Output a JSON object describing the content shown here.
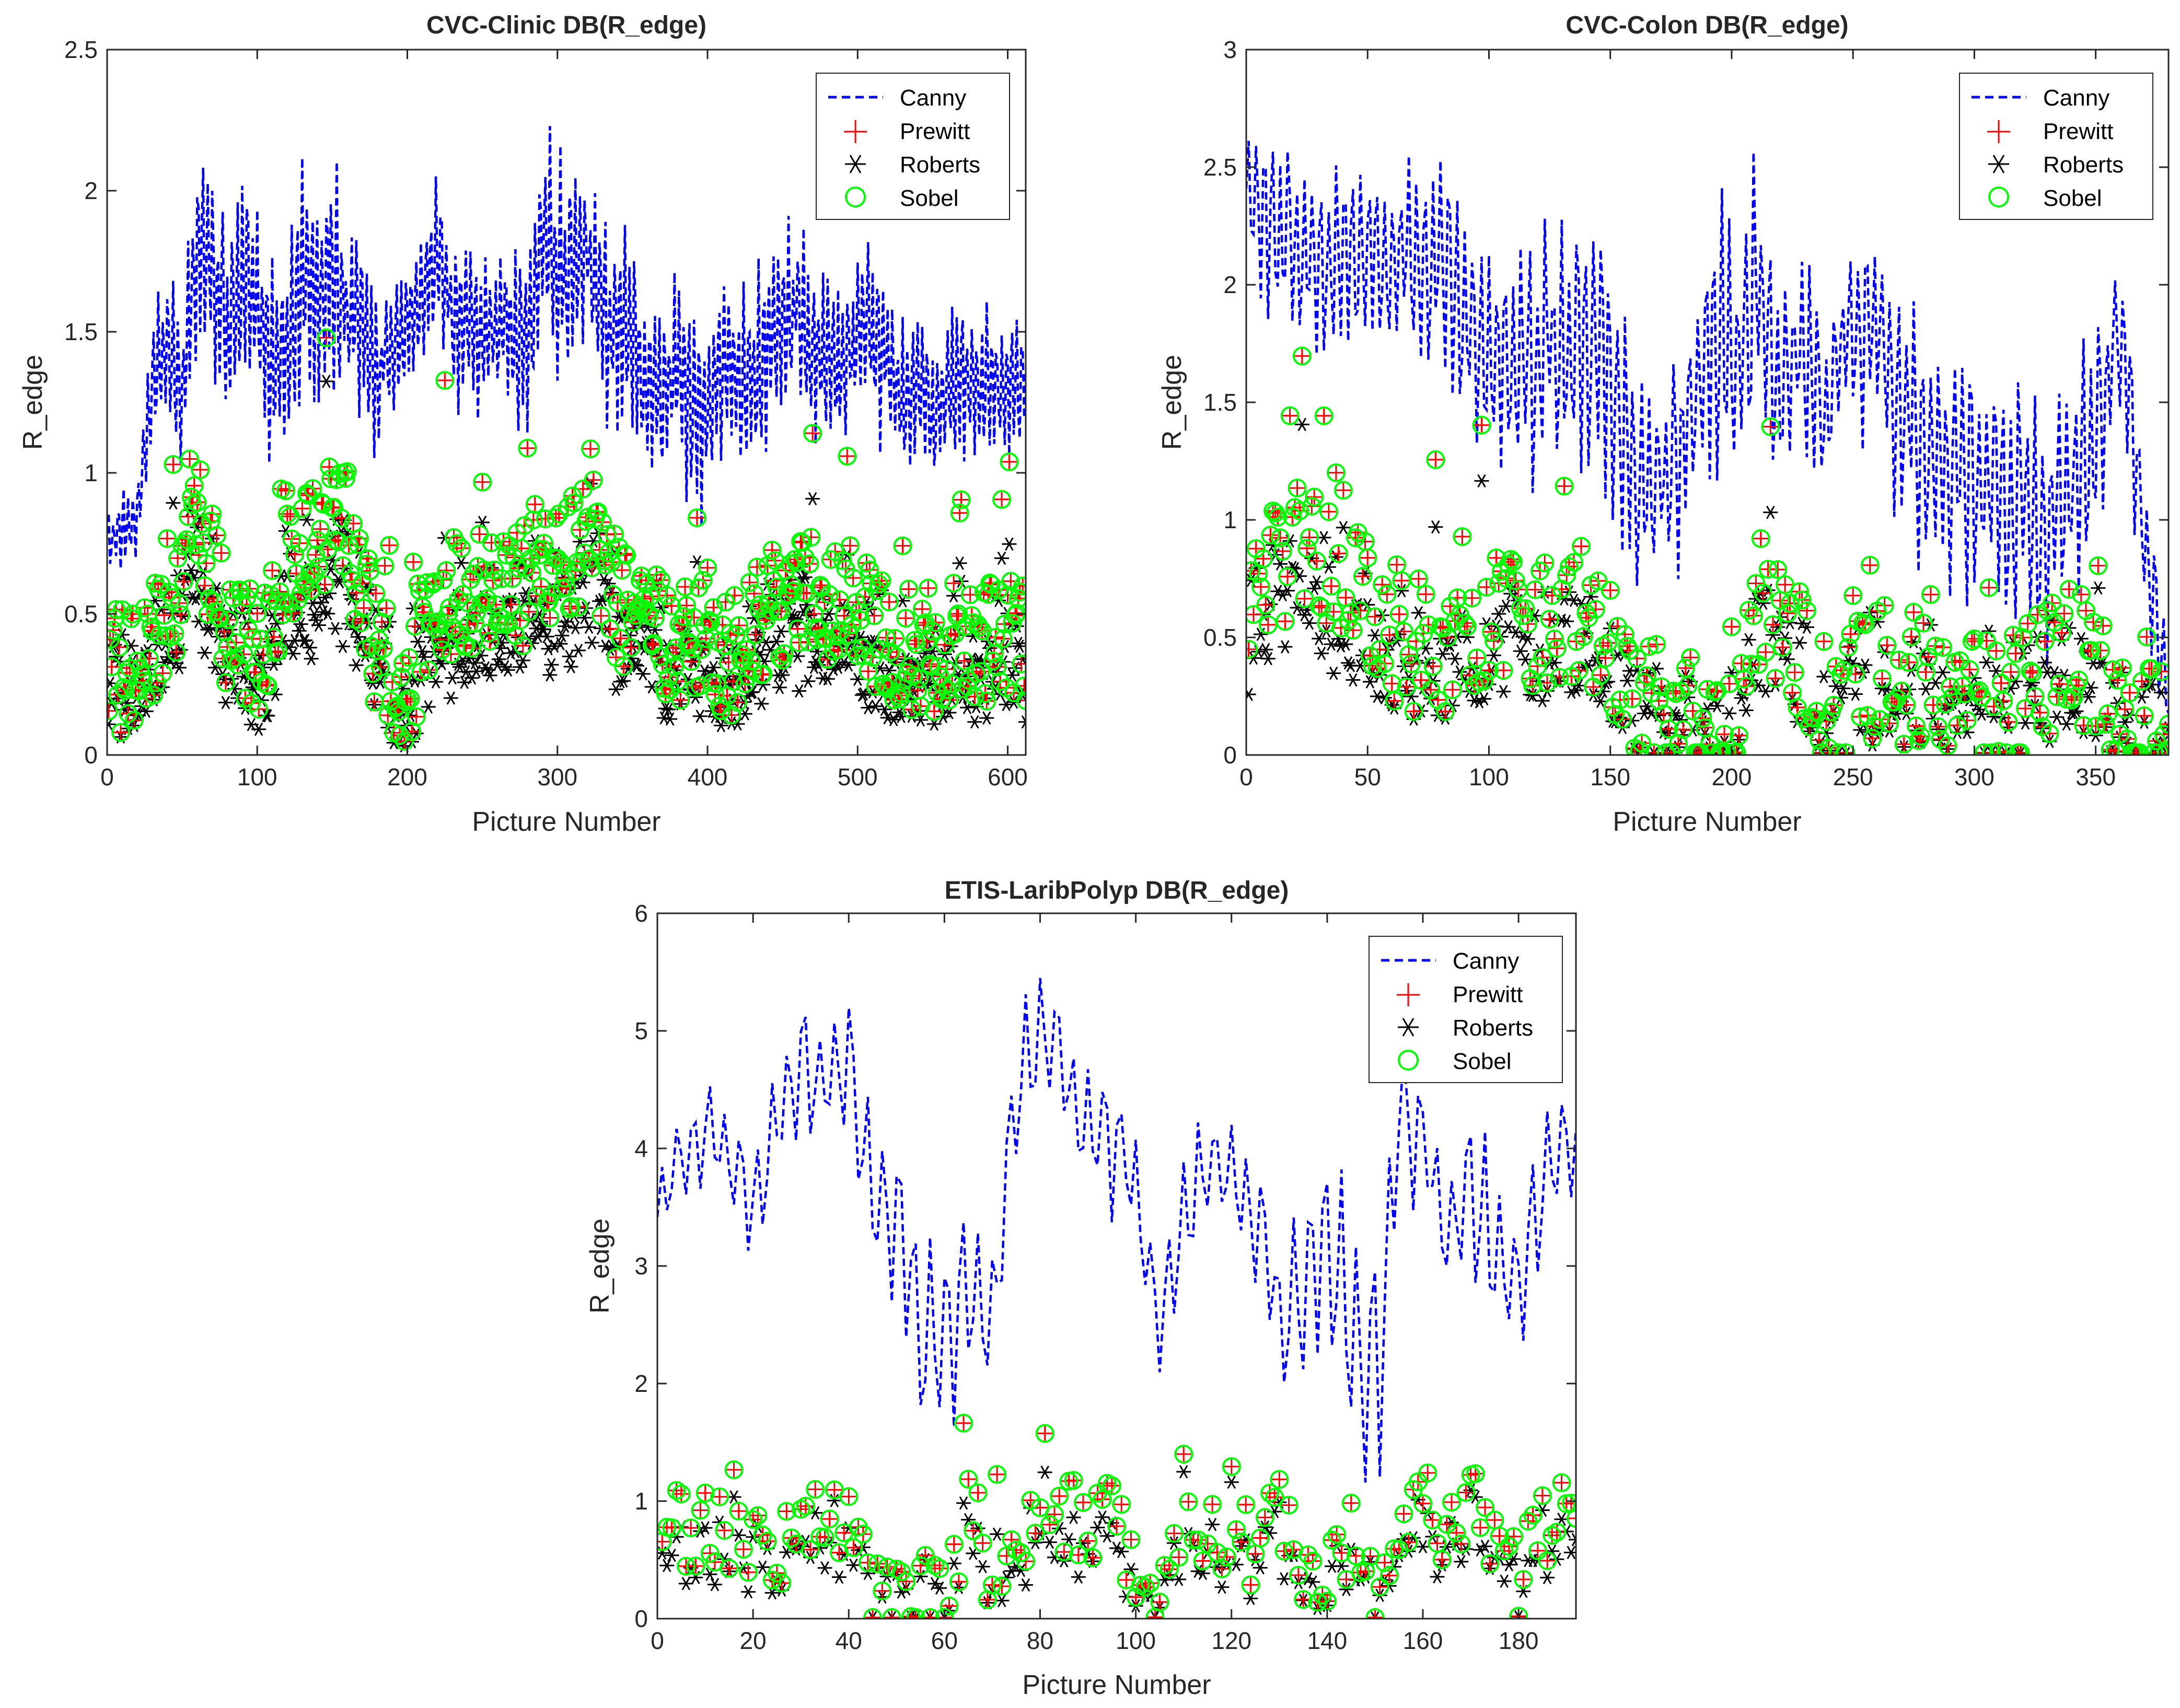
{
  "colors": {
    "canny": "#0000ff",
    "prewitt": "#ff0000",
    "roberts": "#000000",
    "sobel": "#00ff00",
    "axis": "#262626"
  },
  "chart_data": [
    {
      "type": "line",
      "title": "CVC-Clinic DB(R_edge)",
      "xlabel": "Picture Number",
      "ylabel": "R_edge",
      "xlim": [
        0,
        612
      ],
      "ylim": [
        0,
        2.5
      ],
      "xticks": [
        0,
        100,
        200,
        300,
        400,
        500,
        600
      ],
      "yticks": [
        0,
        0.5,
        1,
        1.5,
        2,
        2.5
      ],
      "ytick_labels": [
        "0",
        "0.5",
        "1",
        "1.5",
        "2",
        "2.5"
      ],
      "legend": [
        "Canny",
        "Prewitt",
        "Roberts",
        "Sobel"
      ],
      "legend_position": "top-right",
      "canny_profile": [
        [
          0,
          0.75
        ],
        [
          10,
          0.8
        ],
        [
          20,
          0.85
        ],
        [
          30,
          1.3
        ],
        [
          40,
          1.45
        ],
        [
          50,
          1.3
        ],
        [
          60,
          1.85
        ],
        [
          70,
          1.75
        ],
        [
          80,
          1.5
        ],
        [
          90,
          1.7
        ],
        [
          100,
          1.55
        ],
        [
          110,
          1.35
        ],
        [
          120,
          1.4
        ],
        [
          130,
          1.75
        ],
        [
          140,
          1.6
        ],
        [
          150,
          1.7
        ],
        [
          160,
          1.55
        ],
        [
          170,
          1.5
        ],
        [
          180,
          1.35
        ],
        [
          190,
          1.45
        ],
        [
          200,
          1.5
        ],
        [
          210,
          1.6
        ],
        [
          220,
          1.8
        ],
        [
          230,
          1.55
        ],
        [
          240,
          1.5
        ],
        [
          250,
          1.45
        ],
        [
          260,
          1.55
        ],
        [
          270,
          1.5
        ],
        [
          280,
          1.45
        ],
        [
          290,
          1.8
        ],
        [
          300,
          1.75
        ],
        [
          310,
          1.7
        ],
        [
          320,
          1.8
        ],
        [
          330,
          1.6
        ],
        [
          340,
          1.5
        ],
        [
          350,
          1.45
        ],
        [
          360,
          1.3
        ],
        [
          370,
          1.3
        ],
        [
          380,
          1.35
        ],
        [
          390,
          1.25
        ],
        [
          400,
          1.25
        ],
        [
          410,
          1.4
        ],
        [
          420,
          1.35
        ],
        [
          430,
          1.35
        ],
        [
          440,
          1.45
        ],
        [
          450,
          1.55
        ],
        [
          460,
          1.6
        ],
        [
          470,
          1.45
        ],
        [
          480,
          1.4
        ],
        [
          490,
          1.35
        ],
        [
          500,
          1.5
        ],
        [
          510,
          1.45
        ],
        [
          520,
          1.4
        ],
        [
          530,
          1.25
        ],
        [
          540,
          1.3
        ],
        [
          550,
          1.2
        ],
        [
          560,
          1.3
        ],
        [
          570,
          1.35
        ],
        [
          580,
          1.3
        ],
        [
          590,
          1.35
        ],
        [
          600,
          1.3
        ],
        [
          612,
          1.3
        ]
      ],
      "canny_amplitude": [
        [
          0,
          0.12
        ],
        [
          20,
          0.15
        ],
        [
          40,
          0.3
        ],
        [
          60,
          0.4
        ],
        [
          100,
          0.35
        ],
        [
          140,
          0.45
        ],
        [
          200,
          0.25
        ],
        [
          260,
          0.3
        ],
        [
          300,
          0.4
        ],
        [
          360,
          0.35
        ],
        [
          400,
          0.35
        ],
        [
          460,
          0.3
        ],
        [
          520,
          0.3
        ],
        [
          560,
          0.3
        ],
        [
          612,
          0.25
        ]
      ],
      "points_profile": [
        [
          0,
          0.3
        ],
        [
          20,
          0.3
        ],
        [
          40,
          0.45
        ],
        [
          60,
          0.85
        ],
        [
          80,
          0.45
        ],
        [
          100,
          0.35
        ],
        [
          120,
          0.65
        ],
        [
          140,
          0.8
        ],
        [
          160,
          0.8
        ],
        [
          180,
          0.35
        ],
        [
          200,
          0.25
        ],
        [
          220,
          0.6
        ],
        [
          240,
          0.55
        ],
        [
          260,
          0.6
        ],
        [
          280,
          0.6
        ],
        [
          300,
          0.7
        ],
        [
          320,
          0.75
        ],
        [
          340,
          0.55
        ],
        [
          360,
          0.45
        ],
        [
          380,
          0.4
        ],
        [
          400,
          0.45
        ],
        [
          410,
          0.25
        ],
        [
          420,
          0.4
        ],
        [
          440,
          0.5
        ],
        [
          460,
          0.6
        ],
        [
          480,
          0.55
        ],
        [
          500,
          0.55
        ],
        [
          520,
          0.4
        ],
        [
          540,
          0.3
        ],
        [
          560,
          0.4
        ],
        [
          580,
          0.4
        ],
        [
          612,
          0.4
        ]
      ],
      "points_spread": 0.22,
      "n": 612
    },
    {
      "type": "line",
      "title": "CVC-Colon DB(R_edge)",
      "xlabel": "Picture Number",
      "ylabel": "R_edge",
      "xlim": [
        0,
        380
      ],
      "ylim": [
        0,
        3
      ],
      "xticks": [
        0,
        50,
        100,
        150,
        200,
        250,
        300,
        350
      ],
      "yticks": [
        0,
        0.5,
        1,
        1.5,
        2,
        2.5,
        3
      ],
      "ytick_labels": [
        "0",
        "0.5",
        "1",
        "1.5",
        "2",
        "2.5",
        "3"
      ],
      "legend": [
        "Canny",
        "Prewitt",
        "Roberts",
        "Sobel"
      ],
      "legend_position": "top-right",
      "canny_profile": [
        [
          0,
          2.35
        ],
        [
          10,
          2.2
        ],
        [
          20,
          2.2
        ],
        [
          30,
          2.0
        ],
        [
          40,
          2.2
        ],
        [
          50,
          2.1
        ],
        [
          60,
          2.2
        ],
        [
          70,
          2.05
        ],
        [
          80,
          2.1
        ],
        [
          90,
          1.85
        ],
        [
          100,
          1.7
        ],
        [
          110,
          1.75
        ],
        [
          120,
          1.7
        ],
        [
          130,
          1.75
        ],
        [
          140,
          1.75
        ],
        [
          150,
          1.6
        ],
        [
          160,
          1.2
        ],
        [
          170,
          1.15
        ],
        [
          180,
          1.3
        ],
        [
          190,
          1.7
        ],
        [
          200,
          1.6
        ],
        [
          210,
          2.0
        ],
        [
          220,
          1.55
        ],
        [
          230,
          1.7
        ],
        [
          240,
          1.5
        ],
        [
          250,
          1.8
        ],
        [
          260,
          1.85
        ],
        [
          270,
          1.5
        ],
        [
          280,
          1.3
        ],
        [
          290,
          1.2
        ],
        [
          300,
          1.2
        ],
        [
          310,
          1.1
        ],
        [
          320,
          1.0
        ],
        [
          330,
          0.9
        ],
        [
          340,
          1.2
        ],
        [
          350,
          1.35
        ],
        [
          360,
          1.9
        ],
        [
          370,
          1.0
        ],
        [
          380,
          0.2
        ]
      ],
      "canny_amplitude": [
        [
          0,
          0.35
        ],
        [
          60,
          0.45
        ],
        [
          100,
          0.5
        ],
        [
          160,
          0.6
        ],
        [
          200,
          0.6
        ],
        [
          240,
          0.45
        ],
        [
          280,
          0.5
        ],
        [
          320,
          0.55
        ],
        [
          360,
          0.5
        ],
        [
          380,
          0.2
        ]
      ],
      "points_profile": [
        [
          0,
          0.6
        ],
        [
          20,
          0.9
        ],
        [
          40,
          0.8
        ],
        [
          60,
          0.45
        ],
        [
          80,
          0.45
        ],
        [
          100,
          0.6
        ],
        [
          120,
          0.55
        ],
        [
          140,
          0.55
        ],
        [
          160,
          0.3
        ],
        [
          180,
          0.12
        ],
        [
          200,
          0.1
        ],
        [
          210,
          0.7
        ],
        [
          220,
          0.5
        ],
        [
          230,
          0.4
        ],
        [
          240,
          0.15
        ],
        [
          260,
          0.35
        ],
        [
          280,
          0.3
        ],
        [
          300,
          0.2
        ],
        [
          320,
          0.25
        ],
        [
          340,
          0.45
        ],
        [
          360,
          0.15
        ],
        [
          380,
          0.05
        ]
      ],
      "points_spread": 0.3,
      "n": 380
    },
    {
      "type": "line",
      "title": "ETIS-LaribPolyp DB(R_edge)",
      "xlabel": "Picture Number",
      "ylabel": "R_edge",
      "xlim": [
        0,
        192
      ],
      "ylim": [
        0,
        6
      ],
      "xticks": [
        0,
        20,
        40,
        60,
        80,
        100,
        120,
        140,
        160,
        180
      ],
      "yticks": [
        0,
        1,
        2,
        3,
        4,
        5,
        6
      ],
      "ytick_labels": [
        "0",
        "1",
        "2",
        "3",
        "4",
        "5",
        "6"
      ],
      "legend": [
        "Canny",
        "Prewitt",
        "Roberts",
        "Sobel"
      ],
      "legend_position": "top-right",
      "canny_profile": [
        [
          0,
          3.4
        ],
        [
          5,
          4.0
        ],
        [
          10,
          4.1
        ],
        [
          15,
          4.0
        ],
        [
          20,
          3.5
        ],
        [
          25,
          4.2
        ],
        [
          30,
          4.6
        ],
        [
          35,
          4.5
        ],
        [
          40,
          4.7
        ],
        [
          45,
          3.6
        ],
        [
          50,
          3.5
        ],
        [
          55,
          2.5
        ],
        [
          60,
          2.3
        ],
        [
          65,
          3.0
        ],
        [
          70,
          2.4
        ],
        [
          75,
          4.5
        ],
        [
          80,
          4.9
        ],
        [
          85,
          4.7
        ],
        [
          90,
          4.2
        ],
        [
          95,
          4.0
        ],
        [
          100,
          3.8
        ],
        [
          105,
          2.5
        ],
        [
          110,
          3.4
        ],
        [
          115,
          3.9
        ],
        [
          120,
          3.8
        ],
        [
          125,
          3.3
        ],
        [
          130,
          2.6
        ],
        [
          135,
          2.8
        ],
        [
          140,
          3.3
        ],
        [
          145,
          2.5
        ],
        [
          150,
          1.8
        ],
        [
          155,
          4.3
        ],
        [
          160,
          4.2
        ],
        [
          165,
          3.3
        ],
        [
          170,
          3.7
        ],
        [
          175,
          3.2
        ],
        [
          180,
          2.8
        ],
        [
          185,
          3.8
        ],
        [
          192,
          4.0
        ]
      ],
      "canny_amplitude": [
        [
          0,
          0.35
        ],
        [
          20,
          0.55
        ],
        [
          40,
          0.7
        ],
        [
          60,
          0.8
        ],
        [
          80,
          0.5
        ],
        [
          100,
          0.6
        ],
        [
          120,
          0.5
        ],
        [
          140,
          0.8
        ],
        [
          150,
          1.2
        ],
        [
          160,
          0.6
        ],
        [
          180,
          0.8
        ],
        [
          192,
          0.4
        ]
      ],
      "points_profile": [
        [
          0,
          0.85
        ],
        [
          10,
          0.7
        ],
        [
          20,
          0.75
        ],
        [
          25,
          0.6
        ],
        [
          30,
          0.85
        ],
        [
          40,
          0.7
        ],
        [
          45,
          0.1
        ],
        [
          55,
          0.2
        ],
        [
          60,
          0.25
        ],
        [
          65,
          1.0
        ],
        [
          70,
          0.35
        ],
        [
          75,
          0.3
        ],
        [
          80,
          0.9
        ],
        [
          85,
          0.8
        ],
        [
          90,
          0.75
        ],
        [
          95,
          1.0
        ],
        [
          100,
          0.4
        ],
        [
          105,
          0.3
        ],
        [
          110,
          1.0
        ],
        [
          115,
          0.7
        ],
        [
          120,
          0.9
        ],
        [
          125,
          0.45
        ],
        [
          130,
          0.9
        ],
        [
          135,
          0.5
        ],
        [
          140,
          0.5
        ],
        [
          145,
          0.6
        ],
        [
          150,
          0.05
        ],
        [
          155,
          0.7
        ],
        [
          160,
          1.0
        ],
        [
          165,
          0.6
        ],
        [
          170,
          0.9
        ],
        [
          175,
          0.75
        ],
        [
          180,
          0.4
        ],
        [
          185,
          0.8
        ],
        [
          192,
          0.9
        ]
      ],
      "points_spread": 0.4,
      "n": 192
    }
  ]
}
